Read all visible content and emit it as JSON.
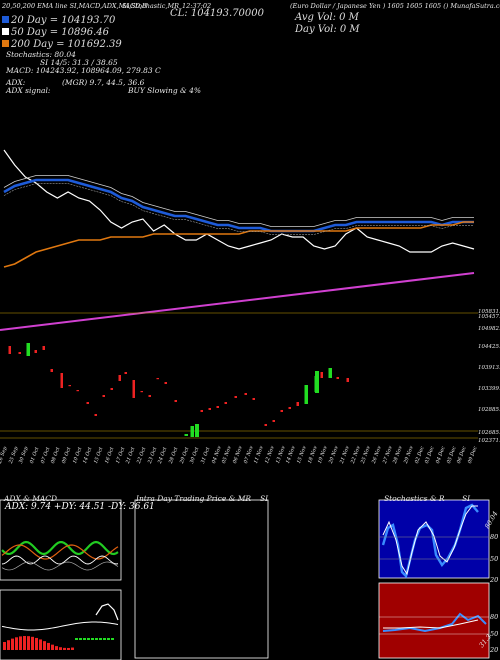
{
  "header": {
    "top_line": "20,50,200 EMA line SI,MACD,ADX,MACD,B",
    "top_line2": "SI,Stochastic,MR",
    "clock": "12:37:02",
    "close_label": "CL: 104193.70000",
    "title": "(Euro Dollar / Japanese Yen ) 1605 1605 1605 () MunafaSutra.com",
    "avg_vol": "Avg Vol: 0  M",
    "day_vol": "Day Vol: 0  M"
  },
  "ema": {
    "e20": "20  Day = 104193.70",
    "e50": "50  Day = 10896.46",
    "e200": "200  Day = 101692.39"
  },
  "stats": {
    "stochastics": "Stochastics: 80.04",
    "si": "SI 14/5: 31.3 / 38.65",
    "macd": "MACD: 104243.92,  108964.09,  279.83 C",
    "adx": "ADX:",
    "mgr": "(MGR) 9.7,  44.5,  36.6",
    "adx_signal": "ADX  signal:",
    "buy_signal": "BUY Slowing  & 4%"
  },
  "price_labels": [
    "105831.56",
    "105457.9",
    "104982.9",
    "104425.3",
    "103913.0",
    "103399.7",
    "102885.4",
    "102685.5",
    "102371.1"
  ],
  "dates": [
    "26 Sep",
    "25 Sep",
    "30 Sep",
    "01 Oct",
    "07 Oct",
    "08 Oct",
    "09 Oct",
    "10 Oct",
    "14 Oct",
    "15 Oct",
    "16 Oct",
    "17 Oct",
    "21 Oct",
    "22 Oct",
    "23 Oct",
    "24 Oct",
    "28 Oct",
    "29 Oct",
    "30 Oct",
    "31 Oct",
    "04 Nov",
    "05 Nov",
    "06 Nov",
    "07 Nov",
    "11 Nov",
    "12 Nov",
    "13 Nov",
    "14 Nov",
    "15 Nov",
    "18 Nov",
    "19 Nov",
    "20 Nov",
    "21 Nov",
    "22 Nov",
    "25 Nov",
    "26 Nov",
    "27 Nov",
    "28 Nov",
    "29 Nov",
    "02 Dec",
    "03 Dec",
    "04 Dec",
    "05 Dec",
    "06 Dec",
    "09 Dec"
  ],
  "panels": {
    "adx_title": "ADX  & MACD",
    "adx_values": "ADX: 9.74  +DY: 44.51  -DY: 36.61",
    "intraday_title": "Intra  Day Trading Price  & MR",
    "intraday_si": "SI",
    "stoch_title": "Stochastics & R",
    "stoch_si": "SI",
    "stoch_value": "80.04",
    "stoch_ticks": [
      "80",
      "50",
      "20"
    ],
    "si_ticks": [
      "80",
      "50",
      "20"
    ],
    "si_value": "31.3"
  },
  "colors": {
    "ema20": "#1e5bd8",
    "ema50": "#ffffff",
    "ema200": "#e07810",
    "long_ma": "#d040d0",
    "up": "#22dd22",
    "down": "#ee2222",
    "si_bg": "#a00000",
    "stoch_bg": "#0000a8"
  },
  "chart_data": [
    {
      "type": "line",
      "name": "price_panel",
      "x_count": 45,
      "series": [
        {
          "name": "close",
          "color": "#ffffff",
          "values": [
            16,
            21,
            25,
            27,
            30,
            32,
            30,
            32,
            33,
            36,
            40,
            42,
            40,
            39,
            43,
            41,
            44,
            46,
            46,
            44,
            46,
            48,
            49,
            48,
            47,
            46,
            44,
            45,
            45,
            48,
            49,
            48,
            44,
            42,
            45,
            46,
            47,
            48,
            50,
            50,
            50,
            48,
            47,
            48,
            49
          ]
        },
        {
          "name": "EMA 20",
          "color": "#1e5bd8",
          "values": [
            30,
            28,
            27,
            26,
            26,
            26,
            26,
            27,
            28,
            29,
            30,
            32,
            33,
            35,
            36,
            37,
            38,
            38,
            39,
            40,
            41,
            41,
            42,
            42,
            42,
            43,
            43,
            43,
            43,
            43,
            42,
            41,
            41,
            40,
            40,
            40,
            40,
            40,
            40,
            40,
            40,
            41,
            40,
            40,
            40
          ]
        },
        {
          "name": "EMA 200",
          "color": "#e07810",
          "values": [
            55,
            54,
            52,
            50,
            49,
            48,
            47,
            46,
            46,
            46,
            45,
            45,
            45,
            45,
            44,
            44,
            44,
            44,
            44,
            44,
            44,
            44,
            44,
            43,
            43,
            43,
            43,
            43,
            43,
            43,
            43,
            43,
            43,
            42,
            42,
            42,
            42,
            42,
            42,
            42,
            41,
            41,
            41,
            40,
            40
          ]
        }
      ],
      "candles": [
        {
          "i": 1,
          "o": 150,
          "c": 151
        },
        {
          "i": 2,
          "o": 158,
          "c": 163
        },
        {
          "i": 3,
          "o": 169,
          "c": 167
        },
        {
          "i": 4,
          "o": 173,
          "c": 171
        },
        {
          "i": 5,
          "o": 172,
          "c": 169
        },
        {
          "i": 6,
          "o": 165,
          "c": 164
        },
        {
          "i": 7,
          "o": 180,
          "c": 178
        },
        {
          "i": 8,
          "o": 194,
          "c": 190
        },
        {
          "i": 9,
          "o": 208,
          "c": 206
        },
        {
          "i": 10,
          "o": 218,
          "c": 216
        },
        {
          "i": 11,
          "o": 220,
          "c": 218
        }
      ]
    }
  ]
}
